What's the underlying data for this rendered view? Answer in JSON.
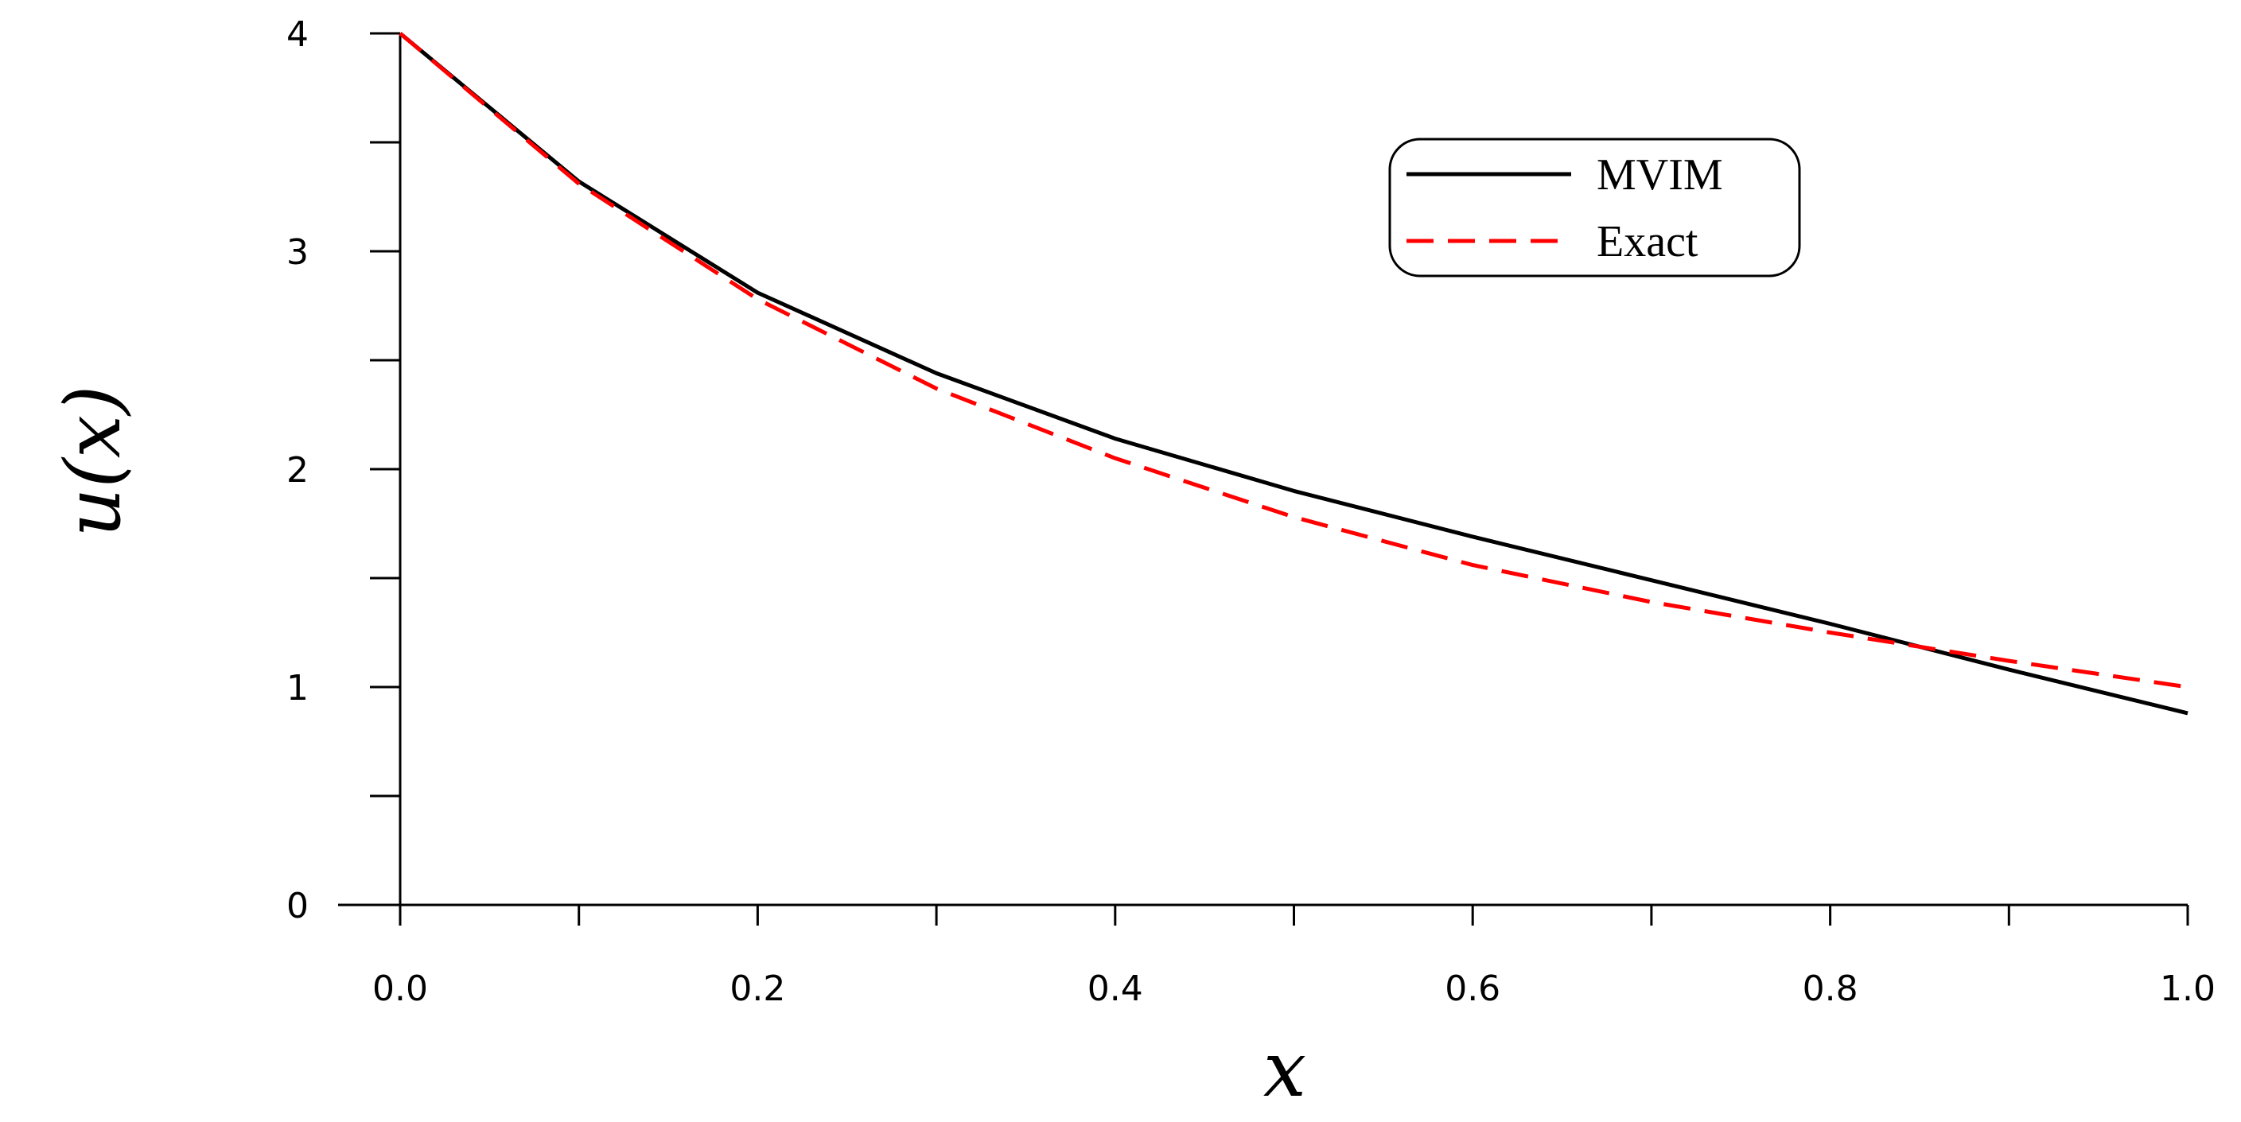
{
  "chart_data": {
    "type": "line",
    "title": "",
    "xlabel": "x",
    "ylabel": "u(x)",
    "xlim": [
      0.0,
      1.0
    ],
    "ylim": [
      0,
      4
    ],
    "x_ticks": [
      "0.0",
      "0.2",
      "0.4",
      "0.6",
      "0.8",
      "1.0"
    ],
    "y_ticks": [
      "0",
      "1",
      "2",
      "3",
      "4"
    ],
    "grid": false,
    "legend_position": "top-right",
    "series": [
      {
        "name": "MVIM",
        "color": "#000000",
        "style": "solid",
        "x": [
          0.0,
          0.1,
          0.2,
          0.3,
          0.4,
          0.5,
          0.6,
          0.7,
          0.8,
          0.9,
          1.0
        ],
        "y": [
          4.0,
          3.32,
          2.81,
          2.44,
          2.14,
          1.9,
          1.69,
          1.49,
          1.29,
          1.08,
          0.88
        ]
      },
      {
        "name": "Exact",
        "color": "#ff0000",
        "style": "dashed",
        "x": [
          0.0,
          0.1,
          0.2,
          0.3,
          0.4,
          0.5,
          0.6,
          0.7,
          0.8,
          0.9,
          1.0
        ],
        "y": [
          4.0,
          3.31,
          2.78,
          2.37,
          2.05,
          1.78,
          1.56,
          1.39,
          1.25,
          1.12,
          1.0
        ]
      }
    ]
  }
}
